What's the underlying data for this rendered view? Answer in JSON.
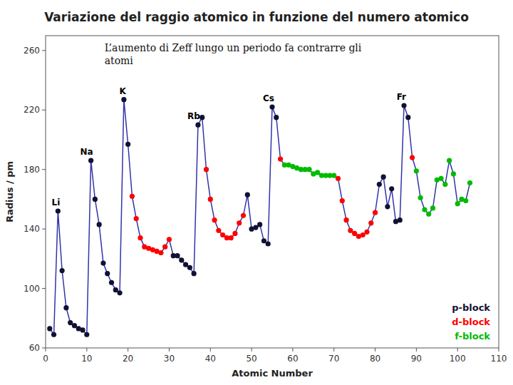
{
  "chart_data": {
    "type": "line",
    "title": "Variazione del raggio atomico in funzione del numero atomico",
    "subtitle": [
      "L’aumento di Zeff lungo un periodo fa contrarre gli",
      "atomi"
    ],
    "x_label": "Atomic Number",
    "y_label": "Radius / pm",
    "xlim": [
      0,
      110
    ],
    "ylim": [
      60,
      270
    ],
    "xticks": [
      0,
      10,
      20,
      30,
      40,
      50,
      60,
      70,
      80,
      90,
      100,
      110
    ],
    "yticks": [
      60,
      100,
      140,
      180,
      220,
      260
    ],
    "grid": false,
    "legend": "lower right",
    "x": [
      1,
      2,
      3,
      4,
      5,
      6,
      7,
      8,
      9,
      10,
      11,
      12,
      13,
      14,
      15,
      16,
      17,
      18,
      19,
      20,
      21,
      22,
      23,
      24,
      25,
      26,
      27,
      28,
      29,
      30,
      31,
      32,
      33,
      34,
      35,
      36,
      37,
      38,
      39,
      40,
      41,
      42,
      43,
      44,
      45,
      46,
      47,
      48,
      49,
      50,
      51,
      52,
      53,
      54,
      55,
      56,
      57,
      58,
      59,
      60,
      61,
      62,
      63,
      64,
      65,
      66,
      67,
      68,
      69,
      70,
      71,
      72,
      73,
      74,
      75,
      76,
      77,
      78,
      79,
      80,
      81,
      82,
      83,
      84,
      85,
      86,
      87,
      88,
      89,
      90,
      91,
      92,
      93,
      94,
      95,
      96,
      97,
      98,
      99,
      100,
      101,
      102,
      103
    ],
    "series": [
      {
        "type": "line",
        "color": "#3333aa",
        "line_style": "solid",
        "values": [
          73,
          69,
          152,
          112,
          87,
          77,
          75,
          73,
          72,
          69,
          186,
          160,
          143,
          117,
          110,
          104,
          99,
          97,
          227,
          197,
          162,
          147,
          134,
          128,
          127,
          126,
          125,
          124,
          128,
          133,
          122,
          122,
          119,
          116,
          114,
          110,
          210,
          215,
          180,
          160,
          146,
          139,
          136,
          134,
          134,
          137,
          144,
          149,
          163,
          140,
          141,
          143,
          132,
          130,
          222,
          215,
          187,
          183,
          183,
          182,
          181,
          180,
          180,
          180,
          177,
          178,
          176,
          176,
          176,
          176,
          174,
          159,
          146,
          139,
          137,
          135,
          136,
          138,
          144,
          151,
          170,
          175,
          155,
          167,
          145,
          146,
          223,
          215,
          188,
          179,
          161,
          153,
          150,
          154,
          173,
          174,
          170,
          186,
          177,
          157,
          160,
          159,
          171
        ]
      },
      {
        "name": "p-block",
        "type": "scatter",
        "marker": "circle",
        "color": "#111133",
        "values": [
          73,
          69,
          152,
          112,
          87,
          77,
          75,
          73,
          72,
          69,
          186,
          160,
          143,
          117,
          110,
          104,
          99,
          97,
          227,
          197,
          null,
          null,
          null,
          null,
          null,
          null,
          null,
          null,
          null,
          null,
          122,
          122,
          119,
          116,
          114,
          110,
          210,
          215,
          null,
          null,
          null,
          null,
          null,
          null,
          null,
          null,
          null,
          null,
          163,
          140,
          141,
          143,
          132,
          130,
          222,
          215,
          null,
          null,
          null,
          null,
          null,
          null,
          null,
          null,
          null,
          null,
          null,
          null,
          null,
          null,
          null,
          null,
          null,
          null,
          null,
          null,
          null,
          null,
          null,
          null,
          170,
          175,
          155,
          167,
          145,
          146,
          223,
          215,
          null,
          null,
          null,
          null,
          null,
          null,
          null,
          null,
          null,
          null,
          null,
          null,
          null,
          null,
          null
        ]
      },
      {
        "name": "d-block",
        "type": "scatter",
        "marker": "circle",
        "color": "#ff0000",
        "values": [
          null,
          null,
          null,
          null,
          null,
          null,
          null,
          null,
          null,
          null,
          null,
          null,
          null,
          null,
          null,
          null,
          null,
          null,
          null,
          null,
          162,
          147,
          134,
          128,
          127,
          126,
          125,
          124,
          128,
          133,
          null,
          null,
          null,
          null,
          null,
          null,
          null,
          null,
          180,
          160,
          146,
          139,
          136,
          134,
          134,
          137,
          144,
          149,
          null,
          null,
          null,
          null,
          null,
          null,
          null,
          null,
          187,
          null,
          null,
          null,
          null,
          null,
          null,
          null,
          null,
          null,
          null,
          null,
          null,
          null,
          174,
          159,
          146,
          139,
          137,
          135,
          136,
          138,
          144,
          151,
          null,
          null,
          null,
          null,
          null,
          null,
          null,
          null,
          188,
          null,
          null,
          null,
          null,
          null,
          null,
          null,
          null,
          null,
          null,
          null,
          null,
          null,
          null
        ]
      },
      {
        "name": "f-block",
        "type": "scatter",
        "marker": "circle",
        "color": "#00bb00",
        "values": [
          null,
          null,
          null,
          null,
          null,
          null,
          null,
          null,
          null,
          null,
          null,
          null,
          null,
          null,
          null,
          null,
          null,
          null,
          null,
          null,
          null,
          null,
          null,
          null,
          null,
          null,
          null,
          null,
          null,
          null,
          null,
          null,
          null,
          null,
          null,
          null,
          null,
          null,
          null,
          null,
          null,
          null,
          null,
          null,
          null,
          null,
          null,
          null,
          null,
          null,
          null,
          null,
          null,
          null,
          null,
          null,
          null,
          183,
          183,
          182,
          181,
          180,
          180,
          180,
          177,
          178,
          176,
          176,
          176,
          176,
          null,
          null,
          null,
          null,
          null,
          null,
          null,
          null,
          null,
          null,
          null,
          null,
          null,
          null,
          null,
          null,
          null,
          null,
          null,
          179,
          161,
          153,
          150,
          154,
          173,
          174,
          170,
          186,
          177,
          157,
          160,
          159,
          171
        ]
      }
    ],
    "annotations": [
      {
        "text": "Li",
        "x": 3,
        "y": 152
      },
      {
        "text": "Na",
        "x": 11,
        "y": 186
      },
      {
        "text": "K",
        "x": 19,
        "y": 227
      },
      {
        "text": "Rb",
        "x": 37,
        "y": 210
      },
      {
        "text": "Cs",
        "x": 55,
        "y": 222
      },
      {
        "text": "Fr",
        "x": 87,
        "y": 223
      }
    ]
  }
}
